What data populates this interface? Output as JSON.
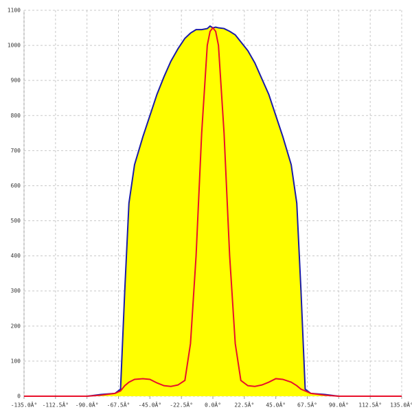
{
  "chart_data": {
    "type": "area",
    "x": [
      -135,
      -90,
      -80,
      -70,
      -66,
      -63,
      -60,
      -56,
      -50,
      -45,
      -40,
      -35,
      -30,
      -25,
      -20,
      -16,
      -12,
      -8,
      -4,
      -2,
      0,
      2,
      4,
      8,
      12,
      16,
      20,
      25,
      30,
      35,
      40,
      45,
      50,
      56,
      60,
      63,
      66,
      70,
      80,
      90,
      135
    ],
    "series": [
      {
        "color": "#1a1aa8",
        "fill": "#ffff00",
        "values": [
          0,
          0,
          5,
          8,
          20,
          300,
          550,
          660,
          740,
          800,
          860,
          910,
          955,
          990,
          1020,
          1035,
          1045,
          1045,
          1048,
          1055,
          1050,
          1052,
          1050,
          1048,
          1040,
          1030,
          1010,
          985,
          950,
          905,
          860,
          800,
          740,
          660,
          550,
          300,
          20,
          8,
          5,
          0,
          0
        ]
      },
      {
        "color": "#e8102a",
        "values": [
          0,
          0,
          3,
          8,
          15,
          30,
          40,
          48,
          50,
          48,
          38,
          30,
          28,
          32,
          45,
          150,
          400,
          750,
          1000,
          1040,
          1050,
          1040,
          1000,
          750,
          400,
          150,
          45,
          30,
          28,
          32,
          40,
          50,
          48,
          40,
          30,
          20,
          15,
          8,
          3,
          0,
          0
        ]
      }
    ],
    "xlim": [
      -135,
      135
    ],
    "xticks": [
      {
        "value": -135,
        "label": "-135.0Â°"
      },
      {
        "value": -112.5,
        "label": "-112.5Â°"
      },
      {
        "value": -90,
        "label": "-90.0Â°"
      },
      {
        "value": -67.5,
        "label": "-67.5Â°"
      },
      {
        "value": -45,
        "label": "-45.0Â°"
      },
      {
        "value": -22.5,
        "label": "-22.5Â°"
      },
      {
        "value": 0,
        "label": "0.0Â°"
      },
      {
        "value": 22.5,
        "label": "22.5Â°"
      },
      {
        "value": 45,
        "label": "45.0Â°"
      },
      {
        "value": 67.5,
        "label": "67.5Â°"
      },
      {
        "value": 90,
        "label": "90.0Â°"
      },
      {
        "value": 112.5,
        "label": "112.5Â°"
      },
      {
        "value": 135,
        "label": "135.0Â°"
      }
    ],
    "ylim": [
      0,
      1100
    ],
    "yticks": [
      0,
      100,
      200,
      300,
      400,
      500,
      600,
      700,
      800,
      900,
      1000,
      1100
    ],
    "grid": true
  }
}
